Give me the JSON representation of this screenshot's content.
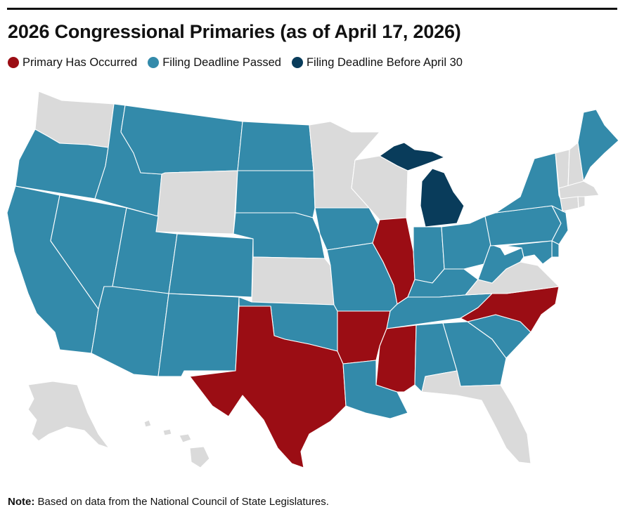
{
  "title": "2026 Congressional Primaries (as of April 17, 2026)",
  "legend": {
    "items": [
      {
        "label": "Primary Has Occurred",
        "color": "#9b0d14"
      },
      {
        "label": "Filing Deadline Passed",
        "color": "#338aaa"
      },
      {
        "label": "Filing Deadline Before April 30",
        "color": "#093c5b"
      }
    ],
    "no_status_color": "#dadada"
  },
  "note": {
    "prefix": "Note:",
    "text": " Based on data from the National Council of State Legislatures."
  },
  "map": {
    "primary_has_occurred": [
      "Texas",
      "Illinois",
      "Arkansas",
      "Mississippi",
      "North Carolina"
    ],
    "filing_deadline_before_april_30": [
      "Michigan"
    ],
    "filing_deadline_passed": [
      "Oregon",
      "California",
      "Nevada",
      "Idaho",
      "Montana",
      "North Dakota",
      "South Dakota",
      "Nebraska",
      "Utah",
      "Arizona",
      "Colorado",
      "New Mexico",
      "Oklahoma",
      "Iowa",
      "Missouri",
      "Louisiana",
      "Indiana",
      "Ohio",
      "Kentucky",
      "Tennessee",
      "Alabama",
      "Georgia",
      "South Carolina",
      "West Virginia",
      "Pennsylvania",
      "New York",
      "New Jersey",
      "Maryland",
      "Delaware",
      "Maine"
    ],
    "no_status": [
      "Washington",
      "Wyoming",
      "Kansas",
      "Minnesota",
      "Wisconsin",
      "Virginia",
      "Florida",
      "Vermont",
      "New Hampshire",
      "Massachusetts",
      "Connecticut",
      "Rhode Island",
      "Alaska",
      "Hawaii"
    ]
  }
}
